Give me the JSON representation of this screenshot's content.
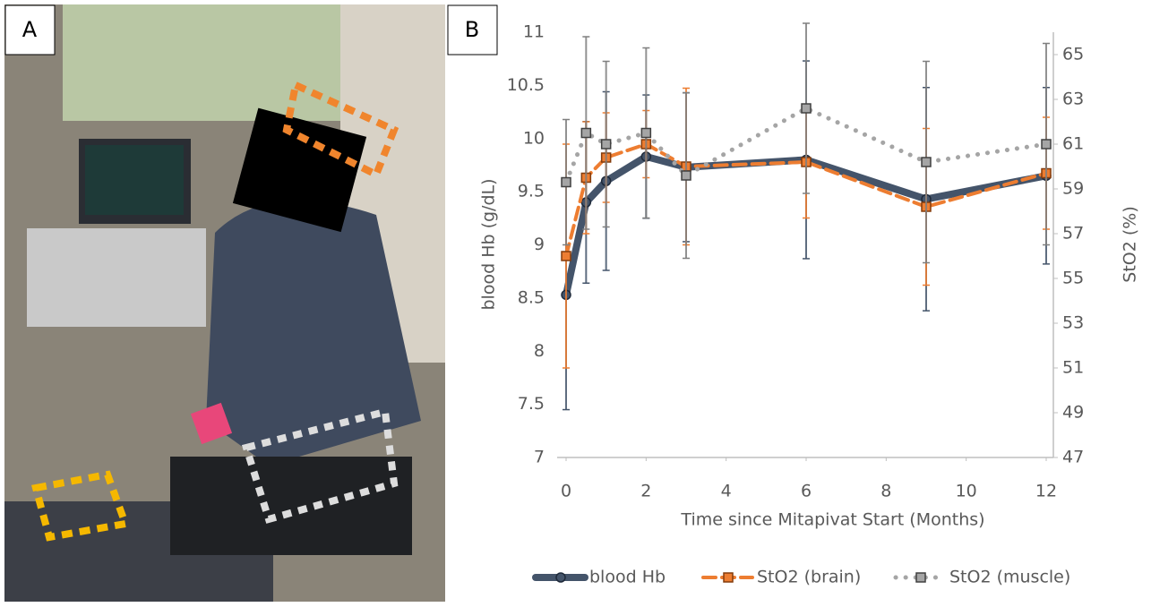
{
  "panels": [
    "A",
    "B"
  ],
  "chart_data": {
    "type": "line",
    "x_label": "Time since Mitapivat Start (Months)",
    "y_label": "blood Hb (g/dL)",
    "y2_label": "StO2 (%)",
    "x": [
      0,
      0.5,
      1,
      2,
      3,
      6,
      9,
      12
    ],
    "xlim": [
      0,
      12
    ],
    "xticks": [
      0,
      2,
      4,
      6,
      8,
      10,
      12
    ],
    "ylim": [
      7,
      11
    ],
    "yticks": [
      7,
      7.5,
      8,
      8.5,
      9,
      9.5,
      10,
      10.5,
      11
    ],
    "y2lim": [
      47,
      66
    ],
    "y2ticks": [
      47,
      49,
      51,
      53,
      55,
      57,
      59,
      61,
      63,
      65
    ],
    "grid": false,
    "legend": "bottom",
    "series": [
      {
        "name": "blood Hb",
        "color": "#44546a",
        "style": "solid",
        "values": [
          8.53,
          9.4,
          9.6,
          9.83,
          9.73,
          9.8,
          9.43,
          9.65
        ],
        "errors": [
          1.08,
          0.76,
          0.84,
          0.58,
          0.7,
          0.93,
          1.05,
          0.83
        ]
      },
      {
        "name": "StO2 (brain)",
        "color": "#ed7d31",
        "style": "dashed",
        "axis": "y2",
        "values": [
          56.0,
          59.5,
          60.4,
          61.0,
          60.0,
          60.2,
          58.2,
          59.7
        ],
        "errors": [
          5.0,
          2.5,
          2.0,
          1.5,
          3.5,
          2.5,
          3.5,
          2.5
        ]
      },
      {
        "name": "StO2 (muscle)",
        "color": "#a5a5a5",
        "style": "dotted",
        "axis": "y2",
        "values": [
          59.3,
          61.5,
          61.0,
          61.5,
          59.6,
          62.6,
          60.2,
          61.0
        ],
        "errors": [
          2.8,
          4.3,
          3.7,
          3.8,
          3.7,
          3.8,
          4.5,
          4.5
        ]
      }
    ]
  }
}
